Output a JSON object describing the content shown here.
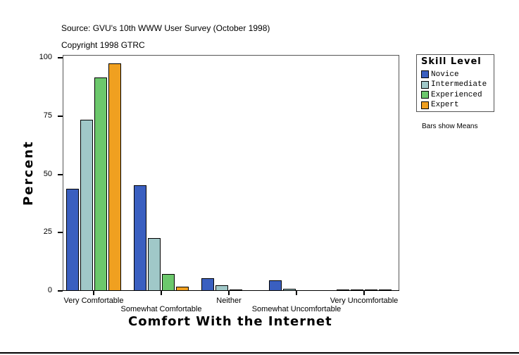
{
  "header": {
    "source": "Source: GVU's 10th WWW User Survey (October 1998)",
    "copyright": "Copyright 1998 GTRC"
  },
  "legend": {
    "title": "Skill Level",
    "items": [
      {
        "label": "Novice",
        "color": "#3a5fc0"
      },
      {
        "label": "Intermediate",
        "color": "#a0c8c8"
      },
      {
        "label": "Experienced",
        "color": "#6cc86c"
      },
      {
        "label": "Expert",
        "color": "#f0a020"
      }
    ]
  },
  "note": "Bars show Means",
  "chart_data": {
    "type": "bar",
    "title": "",
    "xlabel": "Comfort With the Internet",
    "ylabel": "Percent",
    "ylim": [
      0,
      100
    ],
    "yticks": [
      "0",
      "25",
      "50",
      "75",
      "100"
    ],
    "grid": false,
    "legend_position": "right",
    "categories": [
      "Very Comfortable",
      "Somewhat Comfortable",
      "Neither",
      "Somewhat Uncomfortable",
      "Very Uncomfortable"
    ],
    "series": [
      {
        "name": "Novice",
        "values": [
          43.8,
          45.3,
          5.4,
          4.5,
          0.3
        ]
      },
      {
        "name": "Intermediate",
        "values": [
          73.4,
          22.7,
          2.4,
          1.0,
          0.3
        ]
      },
      {
        "name": "Experienced",
        "values": [
          91.5,
          7.3,
          0.3,
          0,
          0.3
        ]
      },
      {
        "name": "Expert",
        "values": [
          97.6,
          1.8,
          0,
          0,
          0.3
        ]
      }
    ]
  }
}
